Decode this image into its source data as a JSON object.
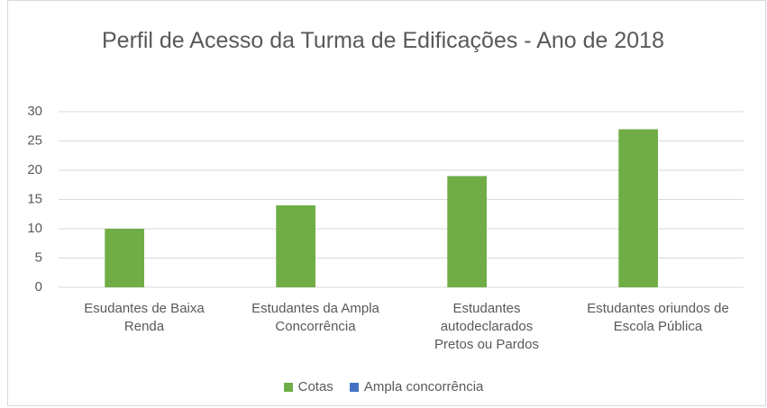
{
  "chart_data": {
    "type": "bar",
    "title": "Perfil de Acesso da Turma de Edificações - Ano de 2018",
    "categories": [
      "Esudantes de Baixa Renda",
      "Estudantes da Ampla Concorrência",
      "Estudantes autodeclarados Pretos ou Pardos",
      "Estudantes oriundos de Escola Pública"
    ],
    "series": [
      {
        "name": "Cotas",
        "color": "#70ad47",
        "values": [
          10,
          14,
          19,
          27
        ]
      },
      {
        "name": "Ampla concorrência",
        "color": "#4472c4",
        "values": [
          0,
          0,
          0,
          0
        ]
      }
    ],
    "ylim": [
      0,
      30
    ],
    "yticks": [
      0,
      5,
      10,
      15,
      20,
      25,
      30
    ],
    "grid": true,
    "legend": "bottom"
  }
}
